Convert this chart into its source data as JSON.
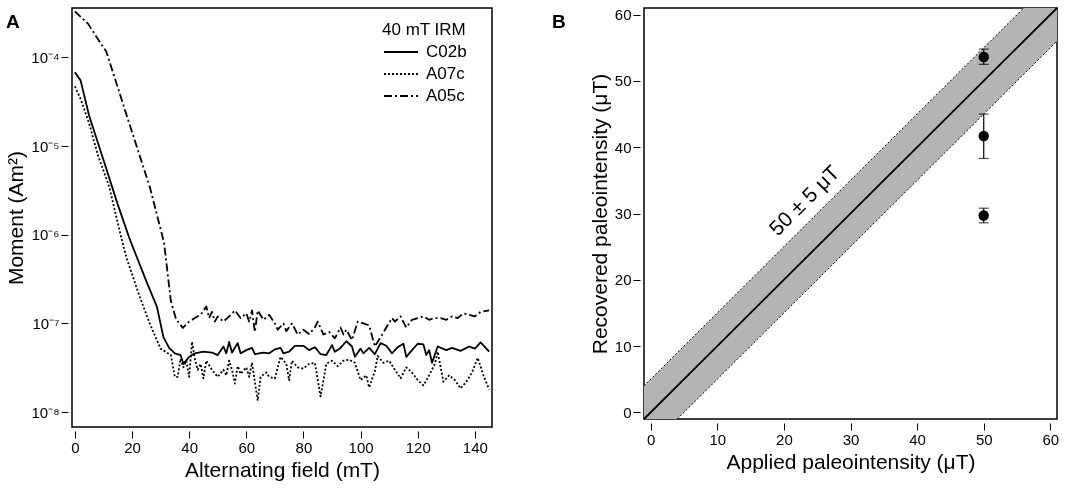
{
  "chart_data": [
    {
      "type": "line",
      "xlabel": "Alternating field (mT)",
      "ylabel": "Moment (Am²)",
      "legend_title": "40 mT IRM",
      "legend": "top right",
      "log": "y",
      "annotations": [
        "A"
      ],
      "xlim": [
        -1,
        146
      ],
      "xticks": [
        0,
        20,
        40,
        60,
        80,
        100,
        120,
        140
      ],
      "ylim": [
        6.8e-09,
        0.00036
      ],
      "yticks": [
        {
          "value": 1e-08,
          "label": "10⁻⁸"
        },
        {
          "value": 1e-07,
          "label": "10⁻⁷"
        },
        {
          "value": 1e-06,
          "label": "10⁻⁶"
        },
        {
          "value": 1e-05,
          "label": "10⁻⁵"
        },
        {
          "value": 0.0001,
          "label": "10⁻⁴"
        }
      ],
      "series": [
        {
          "name": "C02b",
          "color": "#000000",
          "line_style": "solid",
          "x": [
            0,
            2,
            5,
            10,
            15,
            19,
            21.5,
            25,
            28.7,
            31,
            33,
            35,
            37,
            38,
            40,
            42,
            45,
            48,
            50,
            52,
            53,
            54,
            55,
            57,
            58,
            60,
            62,
            63,
            66,
            68,
            70,
            72,
            73,
            75,
            77,
            80,
            82,
            84,
            86,
            88,
            90,
            91,
            93,
            95,
            97,
            98,
            100,
            101,
            103,
            105,
            107,
            109,
            111,
            113,
            115,
            116,
            118,
            120,
            122,
            123,
            124,
            125,
            127,
            130,
            132,
            135,
            138,
            140,
            142,
            145
          ],
          "values": [
            6.8e-05,
            5.5e-05,
            2.2e-05,
            7e-06,
            2.2e-06,
            9.3e-07,
            5.8e-07,
            3e-07,
            1.55e-07,
            7e-08,
            5.3e-08,
            4.6e-08,
            4.4e-08,
            3.5e-08,
            4.2e-08,
            4.6e-08,
            4.8e-08,
            4.7e-08,
            4.4e-08,
            5.5e-08,
            4.6e-08,
            6.2e-08,
            4.7e-08,
            6e-08,
            4.6e-08,
            5e-08,
            5.3e-08,
            4.5e-08,
            4.7e-08,
            4.6e-08,
            5.1e-08,
            5.3e-08,
            4.6e-08,
            4.8e-08,
            5.6e-08,
            5.6e-08,
            5e-08,
            5.4e-08,
            4.5e-08,
            4.4e-08,
            5.7e-08,
            4.8e-08,
            5.3e-08,
            6.3e-08,
            5.5e-08,
            4.2e-08,
            5.2e-08,
            4.6e-08,
            5.3e-08,
            4.5e-08,
            6e-08,
            5.6e-08,
            4.6e-08,
            5.4e-08,
            5.9e-08,
            4.2e-08,
            5e-08,
            5.9e-08,
            5.8e-08,
            4.4e-08,
            5e-08,
            3.6e-08,
            5.5e-08,
            5e-08,
            5.3e-08,
            4.9e-08,
            5.5e-08,
            5.2e-08,
            6.1e-08,
            4.8e-08
          ]
        },
        {
          "name": "A07c",
          "color": "#000000",
          "line_style": "dotted",
          "x": [
            0,
            2,
            5,
            8,
            12,
            16,
            18,
            22.7,
            26.3,
            30,
            33.6,
            35,
            36,
            37,
            38,
            39,
            40,
            41,
            42,
            43,
            44,
            45,
            46,
            48,
            50,
            52,
            53,
            54,
            55,
            56,
            57,
            58,
            60,
            61,
            62,
            64,
            65,
            67,
            68,
            70,
            71,
            72,
            74,
            75,
            76,
            78,
            80,
            82,
            84,
            86,
            88,
            90,
            92,
            94,
            96,
            98,
            100,
            102,
            103,
            105,
            106,
            108,
            110,
            112,
            114,
            116,
            118,
            120,
            122,
            124,
            126,
            127,
            129,
            131,
            133,
            135,
            137,
            139,
            141,
            143,
            145
          ],
          "values": [
            4.7e-05,
            3.4e-05,
            1.8e-05,
            8e-06,
            3.5e-06,
            1e-06,
            5.6e-07,
            2e-07,
            9.8e-08,
            5.2e-08,
            4.4e-08,
            2.5e-08,
            2.5e-08,
            4e-08,
            3.2e-08,
            3.8e-08,
            2.5e-08,
            6.2e-08,
            4e-08,
            3e-08,
            3.5e-08,
            2.4e-08,
            3.8e-08,
            3e-08,
            2.5e-08,
            3e-08,
            2.6e-08,
            3.8e-08,
            3e-08,
            2.1e-08,
            3.3e-08,
            2.7e-08,
            3.2e-08,
            2.5e-08,
            3.6e-08,
            1.35e-08,
            2.5e-08,
            2.8e-08,
            2.5e-08,
            2.4e-08,
            3.2e-08,
            4.2e-08,
            3.5e-08,
            2.3e-08,
            3.8e-08,
            3.2e-08,
            3.1e-08,
            3.5e-08,
            3.6e-08,
            1.5e-08,
            3.5e-08,
            3.8e-08,
            3.3e-08,
            3.8e-08,
            3.9e-08,
            3.6e-08,
            2.3e-08,
            2.6e-08,
            1.9e-08,
            2.9e-08,
            4.3e-08,
            3.6e-08,
            3.8e-08,
            3e-08,
            2.4e-08,
            3.2e-08,
            2.8e-08,
            2.3e-08,
            2e-08,
            2.6e-08,
            3.5e-08,
            4.8e-08,
            2.2e-08,
            2.6e-08,
            2.3e-08,
            1.85e-08,
            2.2e-08,
            2.8e-08,
            4.1e-08,
            2.6e-08,
            1.8e-08
          ]
        },
        {
          "name": "A05c",
          "color": "#000000",
          "line_style": "dashdot",
          "x": [
            0,
            4.6,
            9.4,
            11,
            17.8,
            26.3,
            31.2,
            33.6,
            35.4,
            37.8,
            40,
            42,
            44,
            46,
            47,
            48,
            49,
            50,
            52,
            54,
            56,
            58,
            60,
            61,
            62,
            63,
            64,
            66,
            68,
            70,
            71,
            73,
            74,
            76,
            78,
            80,
            82,
            84,
            85,
            87,
            89,
            91,
            93,
            94,
            95,
            97,
            99,
            101,
            103,
            105,
            107,
            109,
            111,
            112,
            114,
            116,
            118,
            120,
            122,
            124,
            126,
            128,
            130,
            132,
            134,
            136,
            138,
            140,
            142,
            145
          ],
          "values": [
            0.00033,
            0.00024,
            0.000138,
            0.000116,
            2.4e-05,
            3.4e-06,
            8.2e-07,
            1.8e-07,
            1.12e-07,
            8.9e-08,
            1.05e-07,
            1.15e-07,
            1.25e-07,
            1.55e-07,
            1.15e-07,
            1.35e-07,
            1.05e-07,
            1.2e-07,
            1.05e-07,
            1.2e-07,
            1.4e-07,
            1.15e-07,
            1.3e-07,
            1.05e-07,
            1.4e-07,
            8e-08,
            1.4e-07,
            1.1e-07,
            1.25e-07,
            1e-07,
            8.5e-08,
            1e-07,
            8.2e-08,
            1e-07,
            7.5e-08,
            8.5e-08,
            7.6e-08,
            9e-08,
            1.05e-07,
            7.5e-08,
            8e-08,
            6.8e-08,
            9e-08,
            7.5e-08,
            8.5e-08,
            6.5e-08,
            1.05e-07,
            1e-07,
            9.5e-08,
            5.5e-08,
            7e-08,
            9e-08,
            1.15e-07,
            1.05e-07,
            1.2e-07,
            9e-08,
            1.1e-07,
            1.15e-07,
            1.2e-07,
            1.1e-07,
            1.15e-07,
            1.15e-07,
            1.1e-07,
            1.2e-07,
            1.15e-07,
            1.3e-07,
            1.25e-07,
            1.2e-07,
            1.35e-07,
            1.4e-07
          ]
        }
      ]
    },
    {
      "type": "scatter",
      "xlabel": "Applied paleointensity (μT)",
      "ylabel": "Recovered paleointensity (μT)",
      "annotations": [
        "B",
        "50 ± 5 μT"
      ],
      "xlim": [
        -1,
        61
      ],
      "xticks": [
        0,
        10,
        20,
        30,
        40,
        50,
        60
      ],
      "ylim": [
        -1,
        61
      ],
      "yticks": [
        0,
        10,
        20,
        30,
        40,
        50,
        60
      ],
      "series": [
        {
          "type": "line",
          "color": "#000000",
          "line_style": "solid",
          "x": [
            -1,
            4,
            56,
            61
          ],
          "values": [
            -1,
            4,
            56,
            61
          ],
          "lower": [
            -1,
            -1,
            51,
            56
          ],
          "upper": [
            4,
            9,
            61,
            61
          ]
        },
        {
          "type": "line",
          "color": "#000000",
          "line_style": "dotted",
          "x": [
            -1,
            56
          ],
          "values": [
            4,
            61
          ]
        },
        {
          "type": "line",
          "color": "#000000",
          "line_style": "dotted",
          "x": [
            4,
            61
          ],
          "values": [
            -1,
            56
          ]
        },
        {
          "type": "scatter",
          "color": "#000000",
          "marker": "circle",
          "x": [
            50,
            50,
            50
          ],
          "values": [
            53.6,
            41.7,
            29.7
          ],
          "errors": [
            [
              52.5,
              54.8
            ],
            [
              38.3,
              45.0
            ],
            [
              28.6,
              30.8
            ]
          ]
        }
      ]
    }
  ]
}
